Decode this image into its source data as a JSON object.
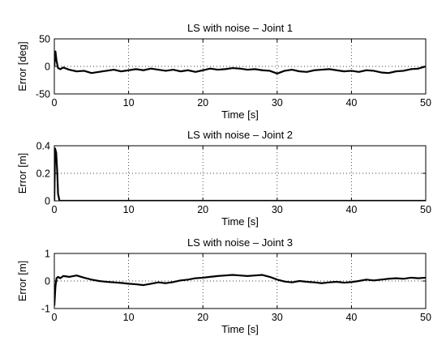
{
  "chart_data": [
    {
      "type": "line",
      "title": "LS with noise – Joint 1",
      "xlabel": "Time [s]",
      "ylabel": "Error [deg]",
      "xlim": [
        0,
        50
      ],
      "ylim": [
        -50,
        50
      ],
      "xticks": [
        0,
        10,
        20,
        30,
        40,
        50
      ],
      "yticks": [
        -50,
        0,
        50
      ],
      "grid": true,
      "series": [
        {
          "x": [
            0,
            0.15,
            0.3,
            0.5,
            0.8,
            1.2,
            2,
            3,
            4,
            5,
            6,
            7,
            8,
            9,
            10,
            11,
            12,
            13,
            14,
            15,
            16,
            17,
            18,
            19,
            20,
            21,
            22,
            23,
            24,
            25,
            26,
            27,
            28,
            29,
            30,
            31,
            32,
            33,
            34,
            35,
            36,
            37,
            38,
            39,
            40,
            41,
            42,
            43,
            44,
            45,
            46,
            47,
            48,
            49,
            50
          ],
          "values": [
            0,
            27,
            10,
            -3,
            -5,
            -2,
            -6,
            -9,
            -8,
            -12,
            -10,
            -8,
            -6,
            -9,
            -7,
            -5,
            -7,
            -4,
            -6,
            -8,
            -6,
            -9,
            -7,
            -10,
            -7,
            -4,
            -6,
            -5,
            -3,
            -4,
            -6,
            -5,
            -7,
            -8,
            -13,
            -8,
            -6,
            -9,
            -10,
            -7,
            -6,
            -5,
            -7,
            -9,
            -8,
            -10,
            -7,
            -8,
            -11,
            -12,
            -9,
            -8,
            -5,
            -4,
            0
          ]
        }
      ]
    },
    {
      "type": "line",
      "title": "LS with noise – Joint 2",
      "xlabel": "Time [s]",
      "ylabel": "Error [m]",
      "xlim": [
        0,
        50
      ],
      "ylim": [
        0,
        0.4
      ],
      "xticks": [
        0,
        10,
        20,
        30,
        40,
        50
      ],
      "yticks": [
        0,
        0.2,
        0.4
      ],
      "grid": true,
      "series": [
        {
          "x": [
            0,
            0.1,
            0.25,
            0.4,
            0.5,
            0.7,
            50
          ],
          "values": [
            0,
            0.38,
            0.35,
            0.2,
            0.05,
            0,
            0
          ]
        }
      ]
    },
    {
      "type": "line",
      "title": "LS with noise – Joint 3",
      "xlabel": "Time [s]",
      "ylabel": "Error [m]",
      "xlim": [
        0,
        50
      ],
      "ylim": [
        -1,
        1
      ],
      "xticks": [
        0,
        10,
        20,
        30,
        40,
        50
      ],
      "yticks": [
        -1,
        0,
        1
      ],
      "grid": true,
      "series": [
        {
          "x": [
            0,
            0.15,
            0.3,
            0.5,
            0.8,
            1.2,
            2,
            3,
            4,
            5,
            6,
            7,
            8,
            9,
            10,
            11,
            12,
            13,
            14,
            15,
            16,
            17,
            18,
            19,
            20,
            21,
            22,
            23,
            24,
            25,
            26,
            27,
            28,
            29,
            30,
            31,
            32,
            33,
            34,
            35,
            36,
            37,
            38,
            39,
            40,
            41,
            42,
            43,
            44,
            45,
            46,
            47,
            48,
            49,
            50
          ],
          "values": [
            -0.9,
            -0.2,
            0.1,
            0.15,
            0.1,
            0.18,
            0.15,
            0.2,
            0.12,
            0.05,
            0,
            -0.03,
            -0.05,
            -0.07,
            -0.1,
            -0.12,
            -0.15,
            -0.1,
            -0.05,
            -0.08,
            -0.04,
            0.02,
            0.05,
            0.1,
            0.12,
            0.15,
            0.18,
            0.2,
            0.22,
            0.2,
            0.18,
            0.2,
            0.22,
            0.15,
            0.05,
            -0.02,
            -0.05,
            0,
            -0.03,
            -0.05,
            -0.08,
            -0.05,
            -0.03,
            -0.06,
            -0.04,
            0,
            0.05,
            0.02,
            0.05,
            0.08,
            0.1,
            0.08,
            0.12,
            0.1,
            0.12
          ]
        }
      ]
    }
  ]
}
